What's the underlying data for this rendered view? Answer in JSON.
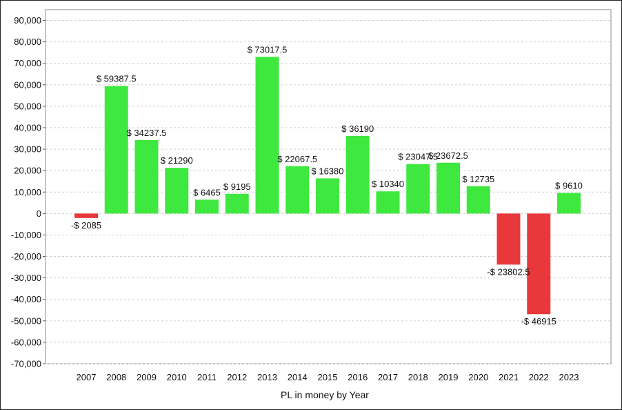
{
  "chart_data": {
    "type": "bar",
    "xlabel": "PL in money by Year",
    "ylabel": "",
    "ylim": [
      -70000,
      90000
    ],
    "yticks": [
      90000,
      80000,
      70000,
      60000,
      50000,
      40000,
      30000,
      20000,
      10000,
      0,
      -10000,
      -20000,
      -30000,
      -40000,
      -50000,
      -60000,
      -70000
    ],
    "ytick_labels": [
      "90,000",
      "80,000",
      "70,000",
      "60,000",
      "50,000",
      "40,000",
      "30,000",
      "20,000",
      "10,000",
      "0",
      "-10,000",
      "-20,000",
      "-30,000",
      "-40,000",
      "-50,000",
      "-60,000",
      "-70,000"
    ],
    "grid": true,
    "positive_color": "#3ee83e",
    "negative_color": "#e8383c",
    "categories": [
      "2007",
      "2008",
      "2009",
      "2010",
      "2011",
      "2012",
      "2013",
      "2014",
      "2015",
      "2016",
      "2017",
      "2018",
      "2019",
      "2020",
      "2021",
      "2022",
      "2023"
    ],
    "values": [
      -2085,
      59387.5,
      34237.5,
      21290,
      6465,
      9195,
      73017.5,
      22067.5,
      16380,
      36190,
      10340,
      23047.5,
      23672.5,
      12735,
      -23802.5,
      -46915,
      9610
    ],
    "data_labels": [
      "-$ 2085",
      "$ 59387.5",
      "$ 34237.5",
      "$ 21290",
      "$ 6465",
      "$ 9195",
      "$ 73017.5",
      "$ 22067.5",
      "$ 16380",
      "$ 36190",
      "$ 10340",
      "$ 23047.5",
      "$ 23672.5",
      "$ 12735",
      "-$ 23802.5",
      "-$ 46915",
      "$ 9610"
    ]
  }
}
